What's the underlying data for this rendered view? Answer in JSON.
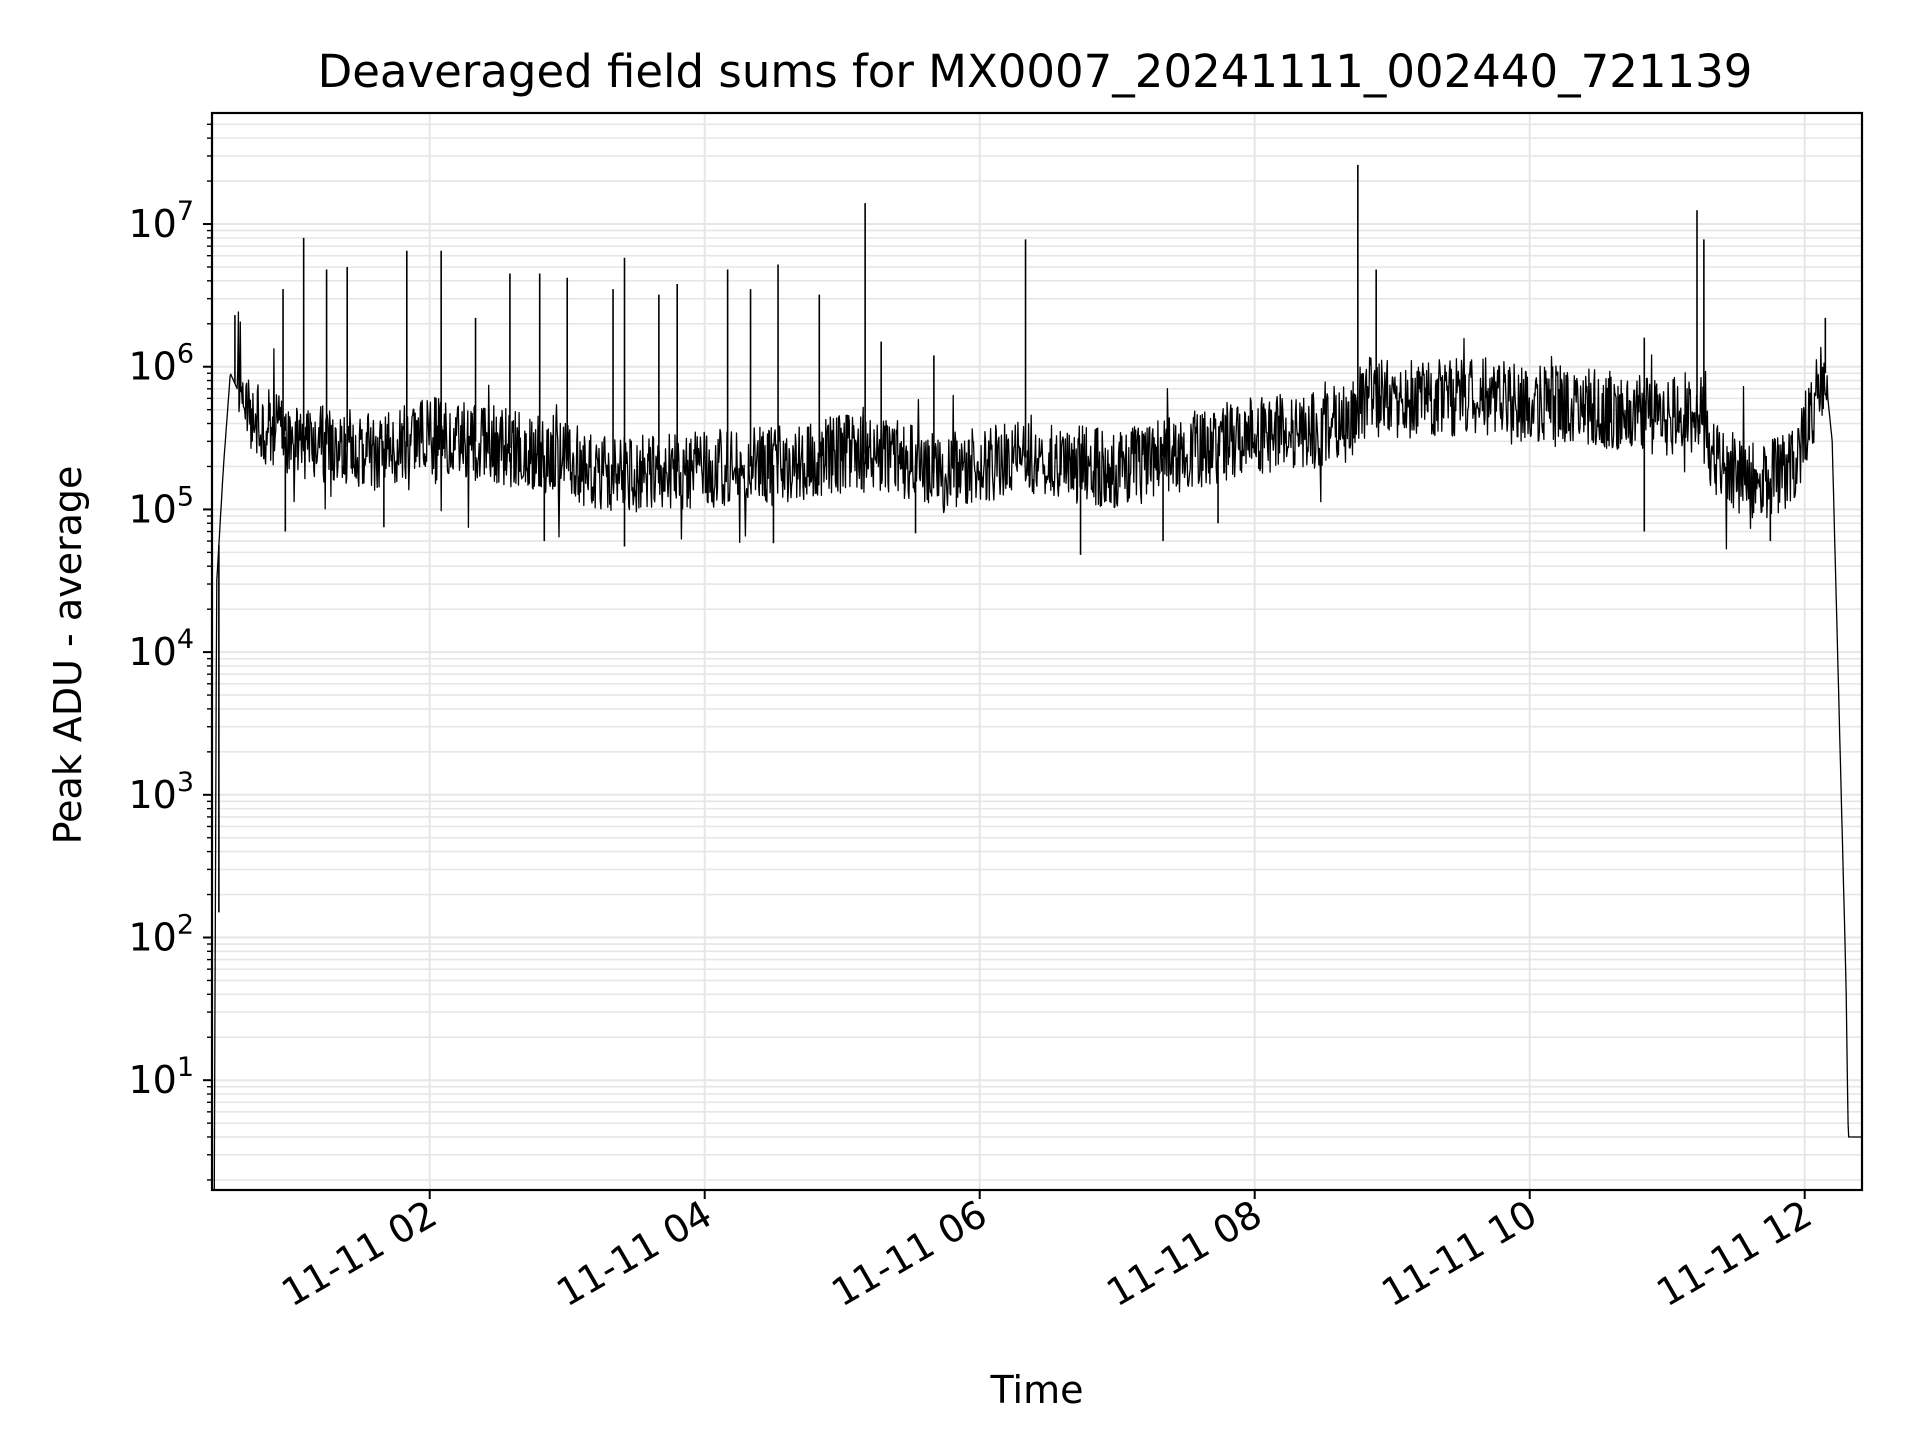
{
  "chart_data": {
    "type": "line",
    "title": "Deaveraged field sums for MX0007_20241111_002440_721139",
    "xlabel": "Time",
    "ylabel": "Peak ADU - average",
    "xscale": "time",
    "yscale": "log",
    "xlim": [
      "2024-11-11 00:25",
      "2024-11-11 12:25"
    ],
    "ylim": [
      1.7,
      60000000
    ],
    "grid": true,
    "legend": "none",
    "line_color": "#000000",
    "grid_color": "#e6e6e6",
    "xticks": [
      {
        "value": "2024-11-11 02:00",
        "label": "11-11 02"
      },
      {
        "value": "2024-11-11 04:00",
        "label": "11-11 04"
      },
      {
        "value": "2024-11-11 06:00",
        "label": "11-11 06"
      },
      {
        "value": "2024-11-11 08:00",
        "label": "11-11 08"
      },
      {
        "value": "2024-11-11 10:00",
        "label": "11-11 10"
      },
      {
        "value": "2024-11-11 12:00",
        "label": "11-11 12"
      }
    ],
    "yticks": [
      {
        "value": 10,
        "base": "10",
        "exp": "1"
      },
      {
        "value": 100,
        "base": "10",
        "exp": "2"
      },
      {
        "value": 1000,
        "base": "10",
        "exp": "3"
      },
      {
        "value": 10000,
        "base": "10",
        "exp": "4"
      },
      {
        "value": 100000,
        "base": "10",
        "exp": "5"
      },
      {
        "value": 1000000,
        "base": "10",
        "exp": "6"
      },
      {
        "value": 10000000,
        "base": "10",
        "exp": "7"
      }
    ],
    "series": [
      {
        "baseline": [
          [
            "2024-11-11 00:26",
            1.7
          ],
          [
            "2024-11-11 00:27",
            30000
          ],
          [
            "2024-11-11 00:30",
            200000
          ],
          [
            "2024-11-11 00:33",
            900000
          ],
          [
            "2024-11-11 00:36",
            700000
          ],
          [
            "2024-11-11 00:40",
            450000
          ],
          [
            "2024-11-11 00:50",
            380000
          ],
          [
            "2024-11-11 01:00",
            300000
          ],
          [
            "2024-11-11 01:20",
            280000
          ],
          [
            "2024-11-11 01:40",
            250000
          ],
          [
            "2024-11-11 02:00",
            330000
          ],
          [
            "2024-11-11 02:20",
            300000
          ],
          [
            "2024-11-11 02:40",
            260000
          ],
          [
            "2024-11-11 03:00",
            220000
          ],
          [
            "2024-11-11 03:20",
            170000
          ],
          [
            "2024-11-11 03:40",
            180000
          ],
          [
            "2024-11-11 04:00",
            190000
          ],
          [
            "2024-11-11 04:20",
            200000
          ],
          [
            "2024-11-11 04:40",
            210000
          ],
          [
            "2024-11-11 05:00",
            250000
          ],
          [
            "2024-11-11 05:20",
            240000
          ],
          [
            "2024-11-11 05:40",
            180000
          ],
          [
            "2024-11-11 06:00",
            210000
          ],
          [
            "2024-11-11 06:20",
            230000
          ],
          [
            "2024-11-11 06:40",
            210000
          ],
          [
            "2024-11-11 07:00",
            190000
          ],
          [
            "2024-11-11 07:20",
            230000
          ],
          [
            "2024-11-11 07:40",
            280000
          ],
          [
            "2024-11-11 08:00",
            330000
          ],
          [
            "2024-11-11 08:20",
            350000
          ],
          [
            "2024-11-11 08:40",
            400000
          ],
          [
            "2024-11-11 08:50",
            650000
          ],
          [
            "2024-11-11 09:00",
            580000
          ],
          [
            "2024-11-11 09:20",
            600000
          ],
          [
            "2024-11-11 09:40",
            620000
          ],
          [
            "2024-11-11 10:00",
            550000
          ],
          [
            "2024-11-11 10:20",
            560000
          ],
          [
            "2024-11-11 10:40",
            480000
          ],
          [
            "2024-11-11 11:00",
            450000
          ],
          [
            "2024-11-11 11:15",
            450000
          ],
          [
            "2024-11-11 11:20",
            220000
          ],
          [
            "2024-11-11 11:40",
            150000
          ],
          [
            "2024-11-11 11:55",
            200000
          ],
          [
            "2024-11-11 12:05",
            600000
          ],
          [
            "2024-11-11 12:09",
            900000
          ],
          [
            "2024-11-11 12:12",
            300000
          ],
          [
            "2024-11-11 12:18",
            50
          ],
          [
            "2024-11-11 12:19",
            4
          ],
          [
            "2024-11-11 12:25",
            4
          ]
        ],
        "spikes": [
          [
            "2024-11-11 00:28",
            150
          ],
          [
            "2024-11-11 00:35",
            2300000
          ],
          [
            "2024-11-11 00:56",
            3500000
          ],
          [
            "2024-11-11 01:05",
            8000000
          ],
          [
            "2024-11-11 01:15",
            4800000
          ],
          [
            "2024-11-11 01:24",
            5000000
          ],
          [
            "2024-11-11 01:50",
            6500000
          ],
          [
            "2024-11-11 02:05",
            6500000
          ],
          [
            "2024-11-11 02:20",
            2200000
          ],
          [
            "2024-11-11 02:35",
            4500000
          ],
          [
            "2024-11-11 02:48",
            4500000
          ],
          [
            "2024-11-11 03:00",
            4200000
          ],
          [
            "2024-11-11 03:20",
            3500000
          ],
          [
            "2024-11-11 03:25",
            5800000
          ],
          [
            "2024-11-11 03:40",
            3200000
          ],
          [
            "2024-11-11 03:48",
            3800000
          ],
          [
            "2024-11-11 04:10",
            4800000
          ],
          [
            "2024-11-11 04:20",
            3500000
          ],
          [
            "2024-11-11 04:32",
            5200000
          ],
          [
            "2024-11-11 04:50",
            3200000
          ],
          [
            "2024-11-11 05:10",
            14000000
          ],
          [
            "2024-11-11 05:17",
            1500000
          ],
          [
            "2024-11-11 05:40",
            1200000
          ],
          [
            "2024-11-11 06:20",
            7800000
          ],
          [
            "2024-11-11 08:45",
            26000000
          ],
          [
            "2024-11-11 08:53",
            4800000
          ],
          [
            "2024-11-11 10:50",
            1600000
          ],
          [
            "2024-11-11 11:13",
            12500000
          ],
          [
            "2024-11-11 11:16",
            7800000
          ],
          [
            "2024-11-11 12:09",
            2200000
          ]
        ],
        "dips": [
          [
            "2024-11-11 00:57",
            70000
          ],
          [
            "2024-11-11 01:40",
            75000
          ],
          [
            "2024-11-11 02:50",
            60000
          ],
          [
            "2024-11-11 03:25",
            55000
          ],
          [
            "2024-11-11 04:30",
            58000
          ],
          [
            "2024-11-11 05:32",
            68000
          ],
          [
            "2024-11-11 06:44",
            48000
          ],
          [
            "2024-11-11 07:20",
            60000
          ],
          [
            "2024-11-11 07:44",
            80000
          ],
          [
            "2024-11-11 10:50",
            70000
          ],
          [
            "2024-11-11 11:45",
            60000
          ]
        ]
      }
    ]
  }
}
